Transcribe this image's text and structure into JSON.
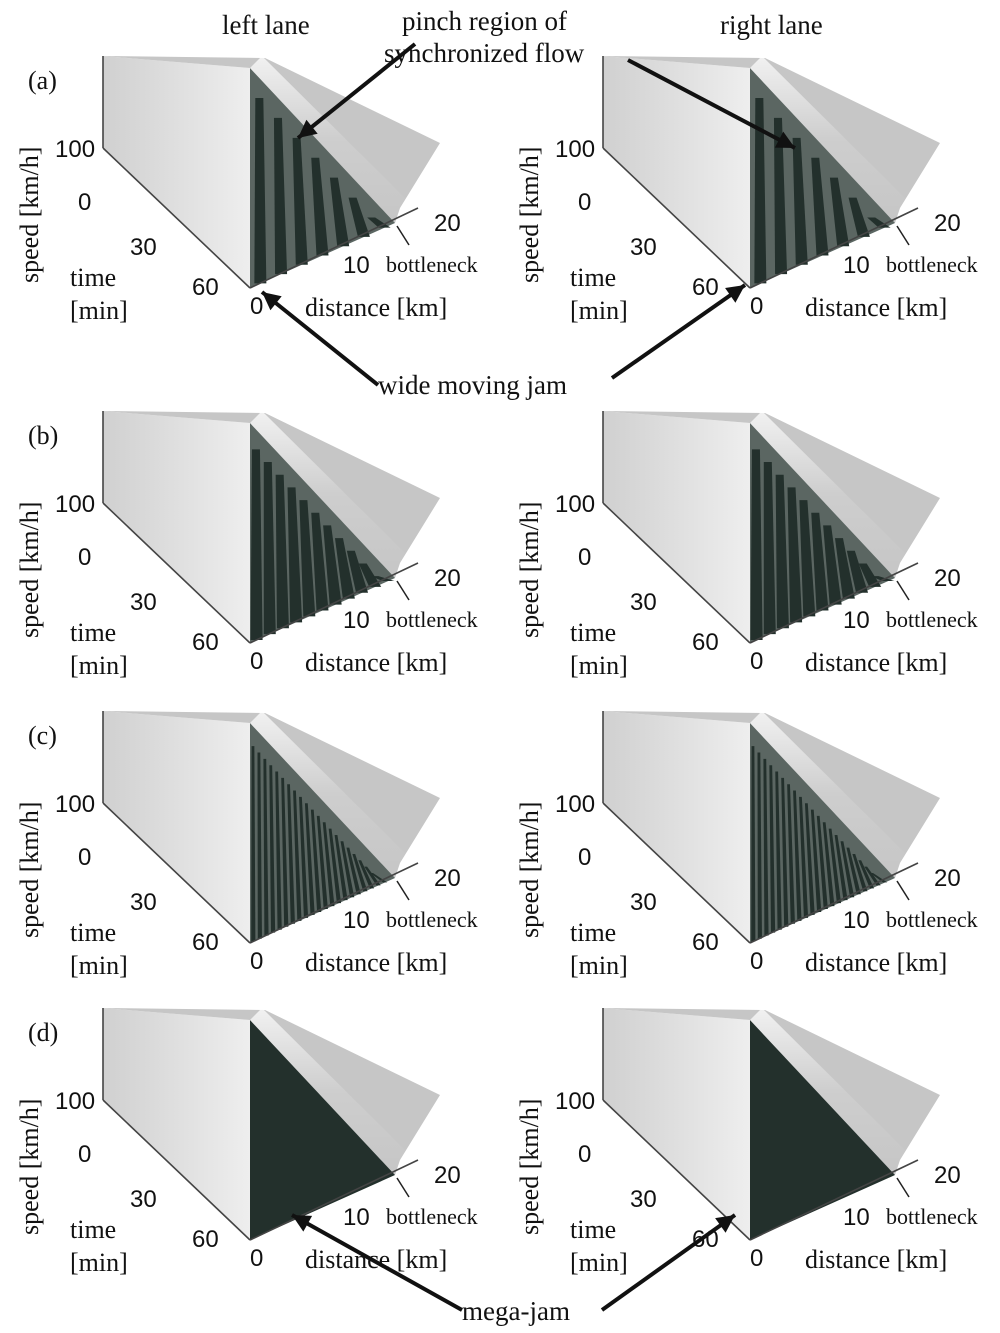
{
  "figure": {
    "column_headers": [
      "left lane",
      "right lane"
    ],
    "annotations": {
      "pinch_line1": "pinch region of",
      "pinch_line2": "synchronized flow",
      "wide_jam": "wide moving jam",
      "mega_jam": "mega-jam"
    },
    "axis": {
      "speed_label": "speed [km/h]",
      "time_label_line1": "time",
      "time_label_line2": "[min]",
      "distance_label": "distance [km]",
      "bottleneck_label": "bottleneck",
      "speed_tick": "100",
      "time_ticks": [
        "0",
        "30",
        "60"
      ],
      "distance_ticks": [
        "0",
        "10",
        "20"
      ]
    },
    "panels": [
      {
        "letter": "(a)",
        "pattern": "few wide moving jams"
      },
      {
        "letter": "(b)",
        "pattern": "more frequent jams"
      },
      {
        "letter": "(c)",
        "pattern": "dense jams"
      },
      {
        "letter": "(d)",
        "pattern": "mega-jam"
      }
    ],
    "colors": {
      "surface_light": "#c6c6c6",
      "surface_wall": "#e4e4e4",
      "jam_dark": "#23302c",
      "axis": "#444444"
    }
  }
}
